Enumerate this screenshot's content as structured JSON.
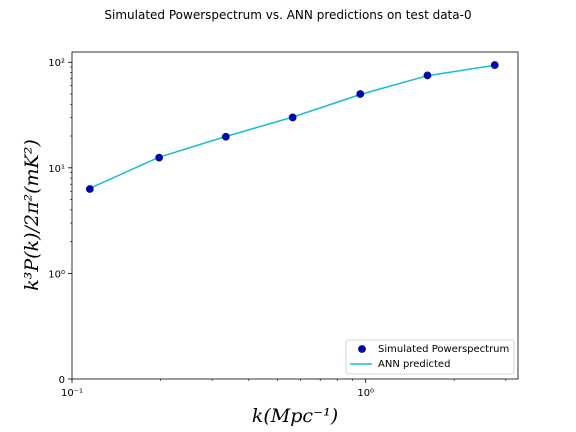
{
  "chart_data": {
    "type": "line",
    "title": "Simulated Powerspectrum vs. ANN predictions on test data-0",
    "xlabel": "k(Mpc⁻¹)",
    "ylabel": "k³P(k)/2π²(mK²)",
    "xscale": "log",
    "yscale": "symlog",
    "xlim": [
      0.1,
      3.3
    ],
    "ylim": [
      0,
      125
    ],
    "x_ticks": [
      {
        "value": 0.1,
        "label": "10⁻¹"
      },
      {
        "value": 1,
        "label": "10⁰"
      }
    ],
    "y_ticks": [
      {
        "value": 0,
        "label": "0"
      },
      {
        "value": 1,
        "label": "10⁰"
      },
      {
        "value": 10,
        "label": "10¹"
      },
      {
        "value": 100,
        "label": "10²"
      }
    ],
    "grid": false,
    "legend_position": "bottom-right",
    "series": [
      {
        "name": "Simulated Powerspectrum",
        "kind": "scatter",
        "color": "#0000cc",
        "edge_color": "#001a66",
        "x": [
          0.115,
          0.198,
          0.334,
          0.564,
          0.958,
          1.623,
          2.75
        ],
        "y": [
          6.3,
          12.5,
          19.7,
          30.0,
          50.0,
          75.0,
          94.0
        ]
      },
      {
        "name": "ANN predicted",
        "kind": "line",
        "color": "#17becf",
        "x": [
          0.115,
          0.198,
          0.334,
          0.564,
          0.958,
          1.623,
          2.75
        ],
        "y": [
          6.4,
          12.6,
          19.8,
          30.2,
          49.5,
          74.5,
          93.5
        ]
      }
    ]
  }
}
